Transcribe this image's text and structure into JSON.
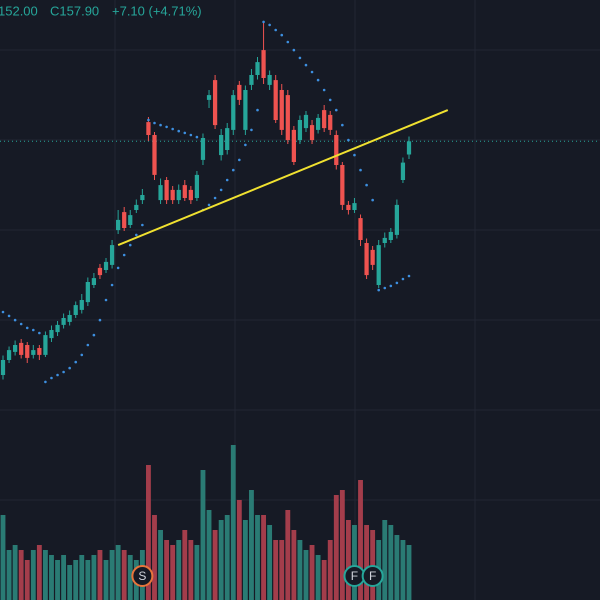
{
  "chart_data": {
    "type": "candlestick",
    "header": [
      "152.00",
      "C157.90",
      "+7.10 (+4.71%)"
    ],
    "ylim": [
      5,
      205
    ],
    "y2lim": [
      0,
      200
    ],
    "up_color": "#26a69a",
    "down_color": "#ef5350",
    "volume_up_color": "#2a7b74",
    "volume_down_color": "#a33d4b",
    "sar_color": "#3d8fe0",
    "trendline": {
      "color": "#f0e130",
      "from": [
        19,
        123.3
      ],
      "to": [
        73.4,
        168.3
      ]
    },
    "last_price_line": 157.9,
    "open": [
      80,
      85,
      87.7,
      90.7,
      90,
      86.7,
      89,
      86.7,
      92.3,
      94.3,
      96.7,
      97.7,
      100,
      101.7,
      104.3,
      110,
      115.7,
      115,
      116.7,
      128.3,
      134.3,
      130,
      135,
      138.3,
      164.3,
      160,
      138.3,
      145,
      141.7,
      138.3,
      143.3,
      141.7,
      139,
      151.7,
      171.7,
      178.3,
      153.3,
      155,
      161.7,
      176.7,
      161.7,
      176.7,
      180,
      188.3,
      176.7,
      178.3,
      175,
      173.3,
      161.7,
      158.3,
      162.3,
      163.3,
      161.7,
      168.3,
      166.7,
      160,
      150,
      136.7,
      135,
      132.3,
      124,
      121.7,
      110,
      124,
      125,
      126.7,
      145,
      153.5
    ],
    "high": [
      86.5,
      89.5,
      91.5,
      92,
      91,
      90,
      90,
      94.5,
      96.5,
      98,
      100.5,
      101.5,
      104.5,
      107,
      112.5,
      114,
      117,
      119,
      125,
      135,
      136,
      135,
      138.5,
      142,
      166,
      161,
      145.5,
      146,
      143,
      143.5,
      145,
      143,
      148,
      160.5,
      175,
      180,
      162,
      164,
      175,
      178,
      176.5,
      182,
      186,
      197.7,
      181.5,
      180,
      177,
      175,
      163,
      166.5,
      168,
      165,
      167,
      170,
      168,
      161.5,
      151,
      138,
      139,
      133.5,
      125.5,
      123,
      125,
      127.5,
      129,
      138.5,
      152.5,
      159.5
    ],
    "low": [
      78.5,
      84,
      86.5,
      85.5,
      84,
      85.5,
      85,
      86,
      91,
      93,
      95.5,
      96.5,
      99,
      100.5,
      103,
      109,
      112,
      114,
      115.5,
      127,
      128,
      129,
      134,
      137,
      158,
      145,
      137,
      137,
      137,
      137,
      138,
      137,
      138,
      150,
      169,
      162,
      151.5,
      153.5,
      160,
      170,
      160,
      175,
      178.5,
      177,
      175,
      164,
      160,
      157,
      150,
      157,
      161,
      157,
      160.5,
      161,
      160,
      148.5,
      135,
      133.5,
      134,
      123,
      112,
      115,
      109,
      122.5,
      124,
      125.5,
      144,
      152
    ],
    "close": [
      85,
      88.3,
      90,
      86.7,
      85.7,
      88.3,
      86.7,
      93.3,
      95,
      96.7,
      99,
      100,
      103.3,
      105,
      111,
      112.3,
      113.3,
      117.7,
      123.3,
      131.7,
      129,
      133.3,
      136.7,
      140,
      160,
      146.7,
      143.3,
      138.3,
      138.3,
      141.7,
      139,
      138.3,
      146.7,
      159,
      173.3,
      163.3,
      160,
      162.3,
      173.3,
      171.7,
      175,
      180,
      184.3,
      179,
      180,
      165,
      161.7,
      158.3,
      151,
      165,
      166.7,
      158.3,
      165.7,
      162.3,
      161.7,
      150,
      136.7,
      135,
      137.3,
      125,
      113.3,
      116.7,
      123.3,
      125.7,
      127.7,
      136.7,
      150.8,
      157.9
    ],
    "volume": [
      75,
      40,
      45,
      40,
      30,
      40,
      45,
      40,
      35,
      30,
      35,
      25,
      30,
      35,
      30,
      35,
      40,
      30,
      40,
      45,
      40,
      35,
      30,
      40,
      125,
      75,
      60,
      50,
      45,
      50,
      60,
      50,
      45,
      120,
      80,
      60,
      70,
      75,
      145,
      90,
      70,
      100,
      75,
      75,
      65,
      50,
      50,
      80,
      60,
      50,
      40,
      45,
      35,
      30,
      50,
      95,
      100,
      70,
      65,
      110,
      65,
      60,
      50,
      70,
      65,
      55,
      50,
      45
    ],
    "sar": [
      101.0,
      99.7,
      98.3,
      97.0,
      95.7,
      95.0,
      94.0,
      77.7,
      79.0,
      80.0,
      81.0,
      82.3,
      84.3,
      86.7,
      90.0,
      93.3,
      98.3,
      105.0,
      110.0,
      115.7,
      120.0,
      123.3,
      126.7,
      130.0,
      165.0,
      164.0,
      163.3,
      162.7,
      162.0,
      161.3,
      160.7,
      160.0,
      159.3,
      135.0,
      136.7,
      139.0,
      141.7,
      145.0,
      148.3,
      151.7,
      156.7,
      161.7,
      168.3,
      197.7,
      196.7,
      195.0,
      193.3,
      191.0,
      188.3,
      185.7,
      183.3,
      181.0,
      178.3,
      175.0,
      171.7,
      168.3,
      163.3,
      158.3,
      153.3,
      148.3,
      143.3,
      138.3,
      108.3,
      109.0,
      109.7,
      110.7,
      112.0,
      113.0
    ],
    "events": [
      {
        "index": 23,
        "label": "S",
        "color": "#e8743b"
      },
      {
        "index": 58,
        "label": "F",
        "color": "#26a69a"
      },
      {
        "index": 61,
        "label": "F",
        "color": "#26a69a"
      }
    ]
  }
}
